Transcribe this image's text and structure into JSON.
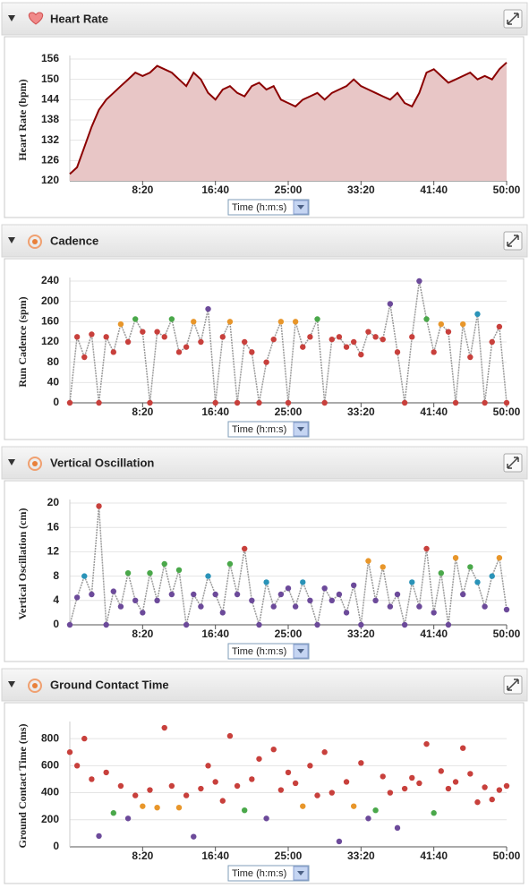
{
  "chart_data": [
    {
      "type": "area",
      "title": "Heart Rate",
      "icon": "heart",
      "y_label": "Heart Rate (bpm)",
      "y_label_color": "#8b1a1a",
      "x_label": "Time (h:m:s)",
      "line_color": "#8b0000",
      "fill_color": "#e8c6c6",
      "grid": true,
      "xlim": [
        0,
        3000
      ],
      "xticks": [
        {
          "value": 500,
          "label": "8:20"
        },
        {
          "value": 1000,
          "label": "16:40"
        },
        {
          "value": 1500,
          "label": "25:00"
        },
        {
          "value": 2000,
          "label": "33:20"
        },
        {
          "value": 2500,
          "label": "41:40"
        },
        {
          "value": 3000,
          "label": "50:00"
        }
      ],
      "ylim": [
        120,
        156
      ],
      "yticks": [
        120,
        126,
        132,
        138,
        144,
        150,
        156
      ],
      "x": [
        0,
        50,
        100,
        150,
        200,
        250,
        300,
        350,
        400,
        450,
        500,
        550,
        600,
        650,
        700,
        750,
        800,
        850,
        900,
        950,
        1000,
        1050,
        1100,
        1150,
        1200,
        1250,
        1300,
        1350,
        1400,
        1450,
        1500,
        1550,
        1600,
        1650,
        1700,
        1750,
        1800,
        1850,
        1900,
        1950,
        2000,
        2050,
        2100,
        2150,
        2200,
        2250,
        2300,
        2350,
        2400,
        2450,
        2500,
        2550,
        2600,
        2650,
        2700,
        2750,
        2800,
        2850,
        2900,
        2950,
        3000
      ],
      "values": [
        122,
        124,
        130,
        136,
        141,
        144,
        146,
        148,
        150,
        152,
        151,
        152,
        154,
        153,
        152,
        150,
        148,
        152,
        150,
        146,
        144,
        147,
        148,
        146,
        145,
        148,
        149,
        147,
        148,
        144,
        143,
        142,
        144,
        145,
        146,
        144,
        146,
        147,
        148,
        150,
        148,
        147,
        146,
        145,
        144,
        146,
        143,
        142,
        146,
        152,
        153,
        151,
        149,
        150,
        151,
        152,
        150,
        151,
        150,
        153,
        155
      ]
    },
    {
      "type": "scatter",
      "title": "Cadence",
      "icon": "runner",
      "y_label": "Run Cadence (spm)",
      "y_label_color": "#d4781c",
      "x_label": "Time (h:m:s)",
      "line": true,
      "line_color": "#9a9a9a",
      "grid": true,
      "xlim": [
        0,
        3000
      ],
      "xticks": [
        {
          "value": 500,
          "label": "8:20"
        },
        {
          "value": 1000,
          "label": "16:40"
        },
        {
          "value": 1500,
          "label": "25:00"
        },
        {
          "value": 2000,
          "label": "33:20"
        },
        {
          "value": 2500,
          "label": "41:40"
        },
        {
          "value": 3000,
          "label": "50:00"
        }
      ],
      "ylim": [
        0,
        240
      ],
      "yticks": [
        0,
        40,
        80,
        120,
        160,
        200,
        240
      ],
      "x": [
        0,
        50,
        100,
        150,
        200,
        250,
        300,
        350,
        400,
        450,
        500,
        550,
        600,
        650,
        700,
        750,
        800,
        850,
        900,
        950,
        1000,
        1050,
        1100,
        1150,
        1200,
        1250,
        1300,
        1350,
        1400,
        1450,
        1500,
        1550,
        1600,
        1650,
        1700,
        1750,
        1800,
        1850,
        1900,
        1950,
        2000,
        2050,
        2100,
        2150,
        2200,
        2250,
        2300,
        2350,
        2400,
        2450,
        2500,
        2550,
        2600,
        2650,
        2700,
        2750,
        2800,
        2850,
        2900,
        2950,
        3000
      ],
      "values": [
        0,
        130,
        90,
        135,
        0,
        130,
        100,
        155,
        120,
        165,
        140,
        0,
        140,
        130,
        165,
        100,
        110,
        160,
        120,
        185,
        0,
        130,
        160,
        0,
        120,
        100,
        0,
        80,
        125,
        160,
        0,
        160,
        110,
        130,
        165,
        0,
        125,
        130,
        110,
        120,
        95,
        140,
        130,
        125,
        195,
        100,
        0,
        130,
        240,
        165,
        100,
        155,
        140,
        0,
        155,
        90,
        175,
        0,
        120,
        150,
        0
      ],
      "point_colors": [
        "#c8403c",
        "#c8403c",
        "#c8403c",
        "#c8403c",
        "#c8403c",
        "#c8403c",
        "#c8403c",
        "#e8962a",
        "#c8403c",
        "#4aa84a",
        "#c8403c",
        "#c8403c",
        "#c8403c",
        "#c8403c",
        "#4aa84a",
        "#c8403c",
        "#c8403c",
        "#e8962a",
        "#c8403c",
        "#6c4a9a",
        "#c8403c",
        "#c8403c",
        "#e8962a",
        "#c8403c",
        "#c8403c",
        "#c8403c",
        "#c8403c",
        "#c8403c",
        "#c8403c",
        "#e8962a",
        "#c8403c",
        "#e8962a",
        "#c8403c",
        "#c8403c",
        "#4aa84a",
        "#c8403c",
        "#c8403c",
        "#c8403c",
        "#c8403c",
        "#c8403c",
        "#c8403c",
        "#c8403c",
        "#c8403c",
        "#c8403c",
        "#6c4a9a",
        "#c8403c",
        "#c8403c",
        "#c8403c",
        "#6c4a9a",
        "#4aa84a",
        "#c8403c",
        "#e8962a",
        "#c8403c",
        "#c8403c",
        "#e8962a",
        "#c8403c",
        "#2a93b8",
        "#c8403c",
        "#c8403c",
        "#c8403c",
        "#c8403c"
      ]
    },
    {
      "type": "scatter",
      "title": "Vertical Oscillation",
      "icon": "runner",
      "y_label": "Vertical Oscillation (cm)",
      "y_label_color": "#2aa0b8",
      "x_label": "Time (h:m:s)",
      "line": true,
      "line_color": "#9a9a9a",
      "grid": true,
      "xlim": [
        0,
        3000
      ],
      "xticks": [
        {
          "value": 500,
          "label": "8:20"
        },
        {
          "value": 1000,
          "label": "16:40"
        },
        {
          "value": 1500,
          "label": "25:00"
        },
        {
          "value": 2000,
          "label": "33:20"
        },
        {
          "value": 2500,
          "label": "41:40"
        },
        {
          "value": 3000,
          "label": "50:00"
        }
      ],
      "ylim": [
        0,
        20
      ],
      "yticks": [
        0,
        4,
        8,
        12,
        16,
        20
      ],
      "x": [
        0,
        50,
        100,
        150,
        200,
        250,
        300,
        350,
        400,
        450,
        500,
        550,
        600,
        650,
        700,
        750,
        800,
        850,
        900,
        950,
        1000,
        1050,
        1100,
        1150,
        1200,
        1250,
        1300,
        1350,
        1400,
        1450,
        1500,
        1550,
        1600,
        1650,
        1700,
        1750,
        1800,
        1850,
        1900,
        1950,
        2000,
        2050,
        2100,
        2150,
        2200,
        2250,
        2300,
        2350,
        2400,
        2450,
        2500,
        2550,
        2600,
        2650,
        2700,
        2750,
        2800,
        2850,
        2900,
        2950,
        3000
      ],
      "values": [
        0,
        4.5,
        8,
        5,
        19.5,
        0,
        5.5,
        3,
        8.5,
        4,
        2,
        8.5,
        4,
        10,
        5,
        9,
        0,
        5,
        3,
        8,
        5,
        2,
        10,
        5,
        12.5,
        4,
        0,
        7,
        3,
        5,
        6,
        3,
        7,
        4,
        0,
        6,
        4,
        5,
        2,
        6.5,
        0,
        10.5,
        4,
        9.5,
        3,
        5,
        0,
        7,
        3,
        12.5,
        2,
        8.5,
        0,
        11,
        5,
        9.5,
        7,
        3,
        8,
        11,
        2.5
      ],
      "point_colors": [
        "#6c4a9a",
        "#6c4a9a",
        "#2a93b8",
        "#6c4a9a",
        "#c8403c",
        "#6c4a9a",
        "#6c4a9a",
        "#6c4a9a",
        "#4aa84a",
        "#6c4a9a",
        "#6c4a9a",
        "#4aa84a",
        "#6c4a9a",
        "#4aa84a",
        "#6c4a9a",
        "#4aa84a",
        "#6c4a9a",
        "#6c4a9a",
        "#6c4a9a",
        "#2a93b8",
        "#6c4a9a",
        "#6c4a9a",
        "#4aa84a",
        "#6c4a9a",
        "#c8403c",
        "#6c4a9a",
        "#6c4a9a",
        "#2a93b8",
        "#6c4a9a",
        "#6c4a9a",
        "#6c4a9a",
        "#6c4a9a",
        "#2a93b8",
        "#6c4a9a",
        "#6c4a9a",
        "#6c4a9a",
        "#6c4a9a",
        "#6c4a9a",
        "#6c4a9a",
        "#6c4a9a",
        "#6c4a9a",
        "#e8962a",
        "#6c4a9a",
        "#e8962a",
        "#6c4a9a",
        "#6c4a9a",
        "#6c4a9a",
        "#2a93b8",
        "#6c4a9a",
        "#c8403c",
        "#6c4a9a",
        "#4aa84a",
        "#6c4a9a",
        "#e8962a",
        "#6c4a9a",
        "#4aa84a",
        "#2a93b8",
        "#6c4a9a",
        "#2a93b8",
        "#e8962a",
        "#6c4a9a"
      ]
    },
    {
      "type": "scatter",
      "title": "Ground Contact Time",
      "icon": "runner",
      "y_label": "Ground Contact Time (ms)",
      "y_label_color": "#2a4a8a",
      "x_label": "Time (h:m:s)",
      "line": false,
      "grid": true,
      "xlim": [
        0,
        3000
      ],
      "xticks": [
        {
          "value": 500,
          "label": "8:20"
        },
        {
          "value": 1000,
          "label": "16:40"
        },
        {
          "value": 1500,
          "label": "25:00"
        },
        {
          "value": 2000,
          "label": "33:20"
        },
        {
          "value": 2500,
          "label": "41:40"
        },
        {
          "value": 3000,
          "label": "50:00"
        }
      ],
      "ylim": [
        0,
        900
      ],
      "yticks": [
        0,
        200,
        400,
        600,
        800
      ],
      "x": [
        0,
        50,
        100,
        150,
        200,
        250,
        300,
        350,
        400,
        450,
        500,
        550,
        600,
        650,
        700,
        750,
        800,
        850,
        900,
        950,
        1000,
        1050,
        1100,
        1150,
        1200,
        1250,
        1300,
        1350,
        1400,
        1450,
        1500,
        1550,
        1600,
        1650,
        1700,
        1750,
        1800,
        1850,
        1900,
        1950,
        2000,
        2050,
        2100,
        2150,
        2200,
        2250,
        2300,
        2350,
        2400,
        2450,
        2500,
        2550,
        2600,
        2650,
        2700,
        2750,
        2800,
        2850,
        2900,
        2950,
        3000
      ],
      "values": [
        700,
        600,
        800,
        500,
        80,
        550,
        250,
        450,
        210,
        380,
        300,
        420,
        290,
        880,
        450,
        290,
        380,
        75,
        430,
        600,
        480,
        340,
        820,
        450,
        270,
        500,
        650,
        210,
        720,
        420,
        550,
        470,
        300,
        600,
        380,
        700,
        400,
        40,
        480,
        300,
        620,
        210,
        270,
        520,
        400,
        140,
        430,
        510,
        470,
        760,
        250,
        560,
        430,
        480,
        730,
        540,
        330,
        440,
        350,
        420,
        450
      ],
      "point_colors": [
        "#c8403c",
        "#c8403c",
        "#c8403c",
        "#c8403c",
        "#6c4a9a",
        "#c8403c",
        "#4aa84a",
        "#c8403c",
        "#6c4a9a",
        "#c8403c",
        "#e8962a",
        "#c8403c",
        "#e8962a",
        "#c8403c",
        "#c8403c",
        "#e8962a",
        "#c8403c",
        "#6c4a9a",
        "#c8403c",
        "#c8403c",
        "#c8403c",
        "#c8403c",
        "#c8403c",
        "#c8403c",
        "#4aa84a",
        "#c8403c",
        "#c8403c",
        "#6c4a9a",
        "#c8403c",
        "#c8403c",
        "#c8403c",
        "#c8403c",
        "#e8962a",
        "#c8403c",
        "#c8403c",
        "#c8403c",
        "#c8403c",
        "#6c4a9a",
        "#c8403c",
        "#e8962a",
        "#c8403c",
        "#6c4a9a",
        "#4aa84a",
        "#c8403c",
        "#c8403c",
        "#6c4a9a",
        "#c8403c",
        "#c8403c",
        "#c8403c",
        "#c8403c",
        "#4aa84a",
        "#c8403c",
        "#c8403c",
        "#c8403c",
        "#c8403c",
        "#c8403c",
        "#c8403c",
        "#c8403c",
        "#c8403c",
        "#c8403c",
        "#c8403c"
      ]
    }
  ]
}
